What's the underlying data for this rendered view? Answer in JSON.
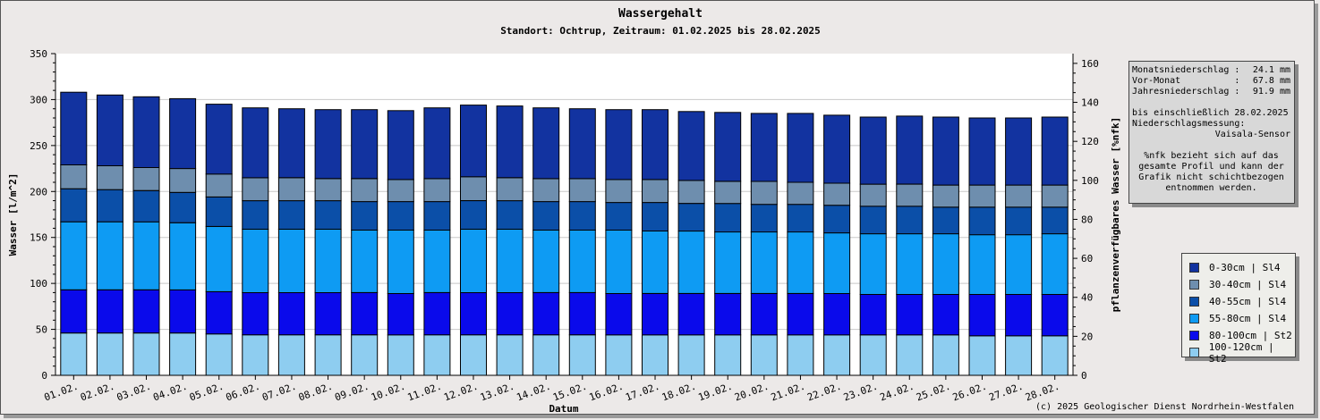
{
  "chart_data": {
    "type": "bar",
    "stacked": true,
    "title": "Wassergehalt",
    "subtitle": "Standort: Ochtrup, Zeitraum: 01.02.2025 bis 28.02.2025",
    "xlabel": "Datum",
    "ylabel": "Wasser [l/m^2]",
    "y2label": "pflanzenverfügbares Wasser [%nfk]",
    "ylim": [
      0,
      350
    ],
    "y2lim": [
      0,
      165
    ],
    "yticks": [
      "0",
      "50",
      "100",
      "150",
      "200",
      "250",
      "300",
      "350"
    ],
    "y2ticks": [
      "0",
      "20",
      "40",
      "60",
      "80",
      "100",
      "120",
      "140",
      "160"
    ],
    "grid": true,
    "legend_position": "right",
    "categories": [
      "01.02.",
      "02.02.",
      "03.02.",
      "04.02.",
      "05.02.",
      "06.02.",
      "07.02.",
      "08.02.",
      "09.02.",
      "10.02.",
      "11.02.",
      "12.02.",
      "13.02.",
      "14.02.",
      "15.02.",
      "16.02.",
      "17.02.",
      "18.02.",
      "19.02.",
      "20.02.",
      "21.02.",
      "22.02.",
      "23.02.",
      "24.02.",
      "25.02.",
      "26.02.",
      "27.02.",
      "28.02."
    ],
    "series": [
      {
        "name": "100-120cm | St2",
        "color": "#8ecdf0",
        "values": [
          46,
          46,
          46,
          46,
          45,
          44,
          44,
          44,
          44,
          44,
          44,
          44,
          44,
          44,
          44,
          44,
          44,
          44,
          44,
          44,
          44,
          44,
          44,
          44,
          44,
          43,
          43,
          43
        ]
      },
      {
        "name": "80-100cm | St2",
        "color": "#0a0aeb",
        "values": [
          47,
          47,
          47,
          47,
          46,
          46,
          46,
          46,
          46,
          45,
          46,
          46,
          46,
          46,
          46,
          45,
          45,
          45,
          45,
          45,
          45,
          45,
          44,
          44,
          44,
          45,
          45,
          45
        ]
      },
      {
        "name": "55-80cm | Sl4",
        "color": "#0e9bf3",
        "values": [
          74,
          74,
          74,
          73,
          71,
          69,
          69,
          69,
          68,
          69,
          68,
          69,
          69,
          68,
          68,
          69,
          68,
          68,
          67,
          67,
          67,
          66,
          66,
          66,
          66,
          65,
          65,
          66
        ]
      },
      {
        "name": "40-55cm | Sl4",
        "color": "#0b4fa8",
        "values": [
          36,
          35,
          34,
          33,
          32,
          31,
          31,
          31,
          31,
          31,
          31,
          31,
          31,
          31,
          31,
          30,
          31,
          30,
          31,
          30,
          30,
          30,
          30,
          30,
          29,
          30,
          30,
          29
        ]
      },
      {
        "name": "30-40cm | Sl4",
        "color": "#6e8eae",
        "values": [
          26,
          26,
          25,
          26,
          25,
          25,
          25,
          24,
          25,
          24,
          25,
          26,
          25,
          25,
          25,
          25,
          25,
          25,
          24,
          25,
          24,
          24,
          24,
          24,
          24,
          24,
          24,
          24
        ]
      },
      {
        "name": "0-30cm | Sl4",
        "color": "#1233a0",
        "values": [
          79,
          77,
          77,
          76,
          76,
          76,
          75,
          75,
          75,
          75,
          77,
          78,
          78,
          77,
          76,
          76,
          76,
          75,
          75,
          74,
          75,
          74,
          73,
          74,
          74,
          73,
          73,
          74
        ]
      }
    ]
  },
  "legend": [
    {
      "label": "0-30cm | Sl4",
      "color": "#1233a0"
    },
    {
      "label": "30-40cm | Sl4",
      "color": "#6e8eae"
    },
    {
      "label": "40-55cm | Sl4",
      "color": "#0b4fa8"
    },
    {
      "label": "55-80cm | Sl4",
      "color": "#0e9bf3"
    },
    {
      "label": "80-100cm | St2",
      "color": "#0a0aeb"
    },
    {
      "label": "100-120cm | St2",
      "color": "#8ecdf0"
    }
  ],
  "info": {
    "rows": [
      {
        "label": "Monatsniederschlag :",
        "value": "24.1 mm"
      },
      {
        "label": "Vor-Monat          :",
        "value": "67.8 mm"
      },
      {
        "label": "Jahresniederschlag :",
        "value": "91.9 mm"
      }
    ],
    "until": "bis einschließlich 28.02.2025",
    "measure_label": "Niederschlagsmessung:",
    "sensor": "Vaisala-Sensor",
    "note": "%nfk bezieht sich auf das gesamte Profil und kann der Grafik nicht schichtbezogen entnommen werden."
  },
  "copyright": "(c) 2025 Geologischer Dienst Nordrhein-Westfalen"
}
